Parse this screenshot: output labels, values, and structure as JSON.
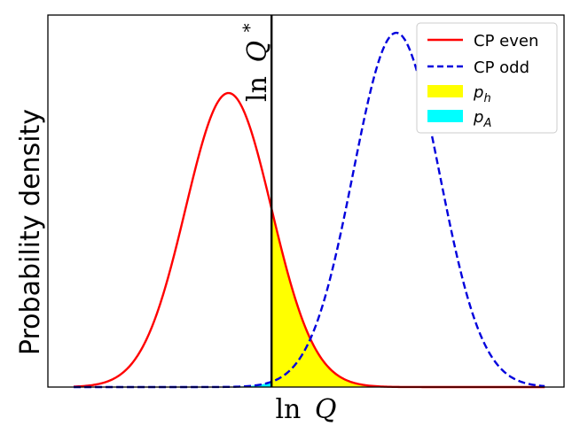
{
  "chart_data": {
    "type": "line",
    "title": "",
    "xlabel_main": "ln",
    "xlabel_var": "Q",
    "ylabel": "Probability density",
    "xlim": [
      -6.2,
      5.8
    ],
    "ylim": [
      0,
      1.05
    ],
    "ticks": "none",
    "grid": false,
    "legend_position": "top-right",
    "threshold": {
      "x": -1.0,
      "label_main": "ln",
      "label_var": "Q",
      "label_sup": "*",
      "color": "#000000"
    },
    "series": [
      {
        "name": "CP even",
        "style": "solid",
        "color": "#ff0000",
        "distribution": "gaussian",
        "mean": -2.0,
        "sigma": 1.0,
        "peak": 0.83
      },
      {
        "name": "CP odd",
        "style": "dashed",
        "color": "#0000dd",
        "distribution": "gaussian",
        "mean": 1.9,
        "sigma": 1.0,
        "peak": 1.0
      }
    ],
    "areas": [
      {
        "name": "p",
        "sub": "h",
        "color": "#ffff00",
        "under_series": "CP even",
        "region": "x > threshold"
      },
      {
        "name": "p",
        "sub": "A",
        "color": "#00ffff",
        "under_series": "CP odd",
        "region": "x < threshold"
      }
    ]
  }
}
